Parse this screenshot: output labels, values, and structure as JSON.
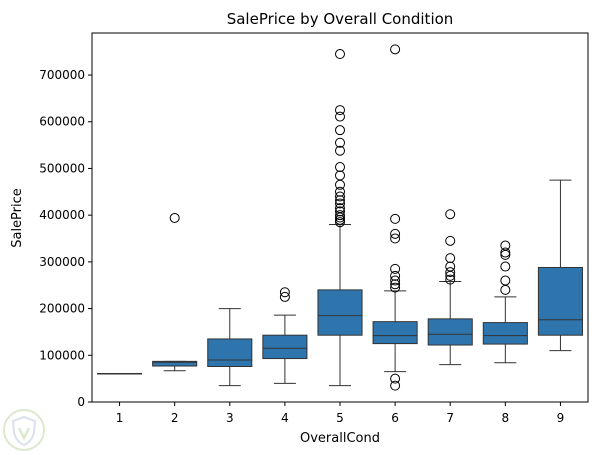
{
  "chart_data": {
    "type": "box",
    "title": "SalePrice by Overall Condition",
    "xlabel": "OverallCond",
    "ylabel": "SalePrice",
    "categories": [
      "1",
      "2",
      "3",
      "4",
      "5",
      "6",
      "7",
      "8",
      "9"
    ],
    "ylim": [
      0,
      790000
    ],
    "yticks": [
      0,
      100000,
      200000,
      300000,
      400000,
      500000,
      600000,
      700000
    ],
    "box_color": "#2e74ad",
    "grid": false,
    "boxes": [
      {
        "category": "1",
        "whisker_low": 61000,
        "q1": 61000,
        "median": 61000,
        "q3": 61000,
        "whisker_high": 61000,
        "outliers": []
      },
      {
        "category": "2",
        "whisker_low": 67000,
        "q1": 77000,
        "median": 85000,
        "q3": 87000,
        "whisker_high": 87000,
        "outliers": [
          394000
        ]
      },
      {
        "category": "3",
        "whisker_low": 35000,
        "q1": 76000,
        "median": 90000,
        "q3": 135000,
        "whisker_high": 200000,
        "outliers": []
      },
      {
        "category": "4",
        "whisker_low": 40000,
        "q1": 93000,
        "median": 115000,
        "q3": 143000,
        "whisker_high": 186000,
        "outliers": [
          225000,
          235000
        ]
      },
      {
        "category": "5",
        "whisker_low": 35000,
        "q1": 143000,
        "median": 185000,
        "q3": 240000,
        "whisker_high": 380000,
        "outliers": [
          385000,
          390000,
          395000,
          400000,
          408000,
          415000,
          425000,
          432000,
          440000,
          450000,
          465000,
          485000,
          503000,
          538000,
          555000,
          582000,
          611000,
          625000,
          745000
        ]
      },
      {
        "category": "6",
        "whisker_low": 65000,
        "q1": 125000,
        "median": 142000,
        "q3": 172000,
        "whisker_high": 238000,
        "outliers": [
          35000,
          50000,
          245000,
          252000,
          260000,
          270000,
          285000,
          350000,
          360000,
          392000,
          755000
        ]
      },
      {
        "category": "7",
        "whisker_low": 80000,
        "q1": 122000,
        "median": 145000,
        "q3": 178000,
        "whisker_high": 258000,
        "outliers": [
          262000,
          270000,
          278000,
          290000,
          308000,
          345000,
          402000
        ]
      },
      {
        "category": "8",
        "whisker_low": 84000,
        "q1": 124000,
        "median": 142000,
        "q3": 170000,
        "whisker_high": 225000,
        "outliers": [
          240000,
          260000,
          290000,
          315000,
          320000,
          335000
        ]
      },
      {
        "category": "9",
        "whisker_low": 110000,
        "q1": 143000,
        "median": 176000,
        "q3": 288000,
        "whisker_high": 475000,
        "outliers": []
      }
    ]
  }
}
